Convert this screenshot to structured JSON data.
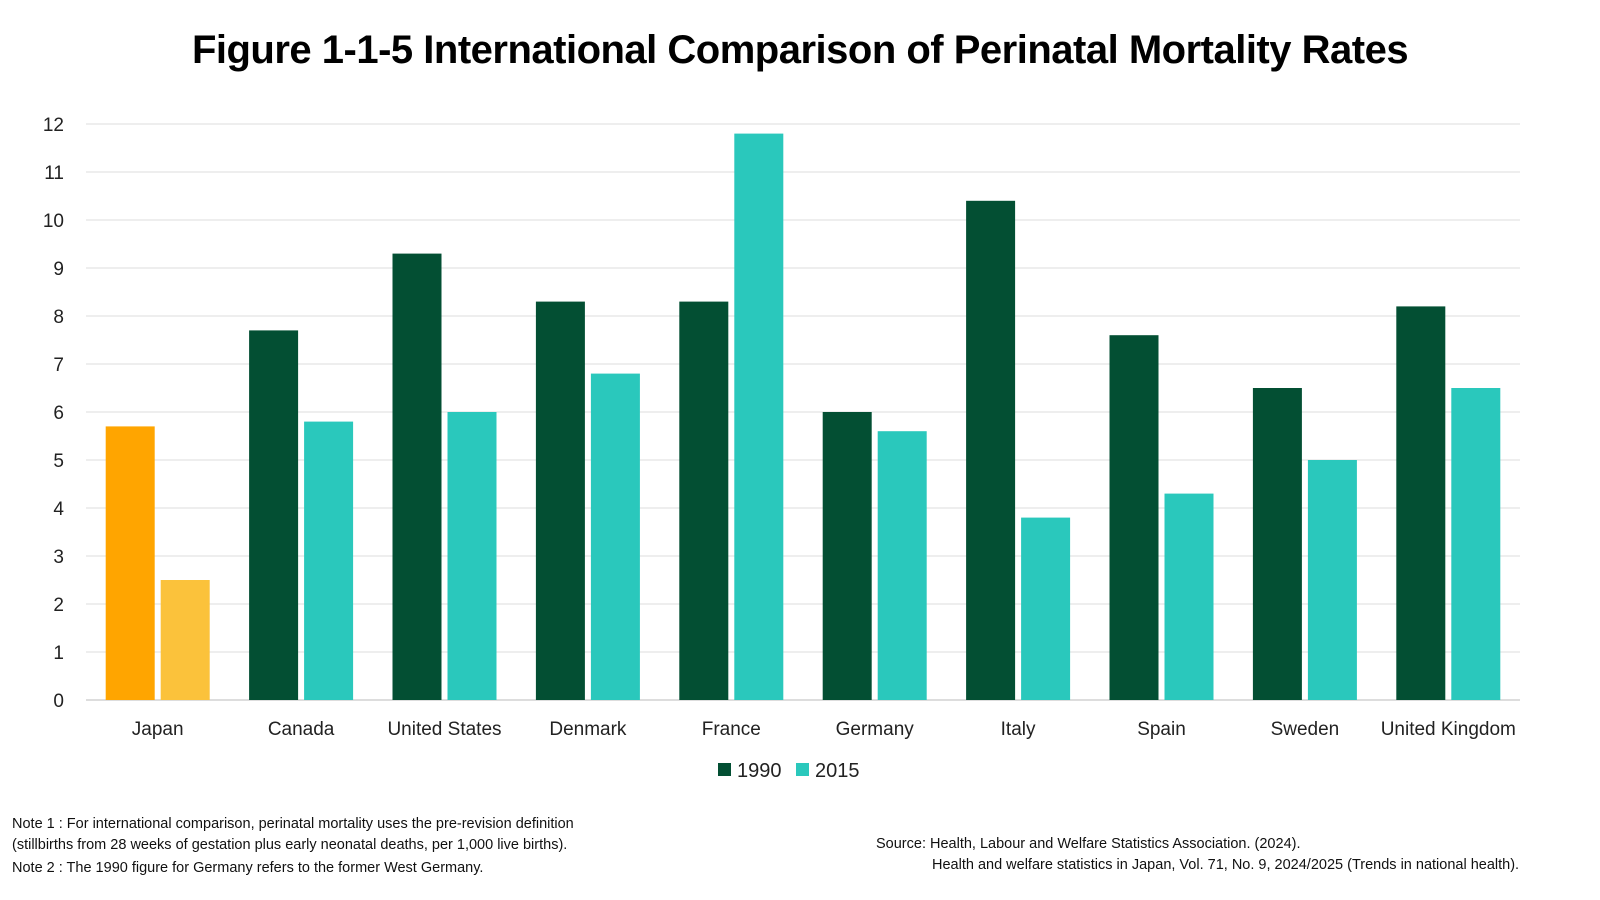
{
  "chart_data": {
    "type": "bar",
    "title": "Figure 1-1-5 International Comparison of Perinatal Mortality Rates",
    "categories": [
      "Japan",
      "Canada",
      "United States",
      "Denmark",
      "France",
      "Germany",
      "Italy",
      "Spain",
      "Sweden",
      "United Kingdom"
    ],
    "series": [
      {
        "name": "1990",
        "values": [
          5.7,
          7.7,
          9.3,
          8.3,
          8.3,
          6.0,
          10.4,
          7.6,
          6.5,
          8.2
        ],
        "color": "#034F33",
        "highlight_color": "#FFA500"
      },
      {
        "name": "2015",
        "values": [
          2.5,
          5.8,
          6.0,
          6.8,
          11.8,
          5.6,
          3.8,
          4.3,
          5.0,
          6.5
        ],
        "color": "#2AC8BC",
        "highlight_color": "#FBC23B"
      }
    ],
    "highlight_category": "Japan",
    "ylim": [
      0,
      12
    ],
    "yticks": [
      0,
      1,
      2,
      3,
      4,
      5,
      6,
      7,
      8,
      9,
      10,
      11,
      12
    ],
    "grid": true,
    "legend_position": "bottom-center",
    "xlabel": "",
    "ylabel": ""
  },
  "notes": {
    "note1_line1": "Note 1 : For international comparison, perinatal mortality uses the pre-revision definition",
    "note1_line2": "(stillbirths from 28 weeks of gestation plus early neonatal deaths, per 1,000 live births).",
    "note2": "Note 2 : The 1990 figure for Germany refers to the former West Germany."
  },
  "source": {
    "line1": "Source: Health, Labour and Welfare Statistics Association. (2024).",
    "line2": "Health and welfare statistics in Japan, Vol. 71, No. 9, 2024/2025 (Trends in national health)."
  },
  "colors": {
    "grid": "#DDDDDD",
    "axis": "#BBBBBB"
  }
}
